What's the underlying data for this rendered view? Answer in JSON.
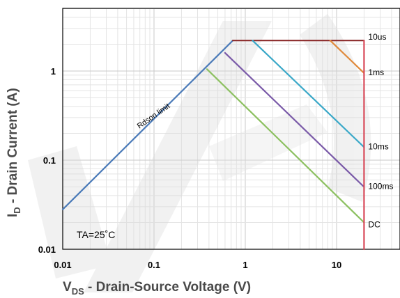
{
  "chart_data": {
    "type": "line",
    "title": "",
    "xlabel": "V",
    "xlabel_sub": "DS",
    "xlabel_rest": " - Drain-Source Voltage (V)",
    "ylabel": "I",
    "ylabel_sub": "D",
    "ylabel_rest": " - Drain Current (A)",
    "x_scale": "log",
    "y_scale": "log",
    "xlim": [
      0.01,
      50
    ],
    "ylim": [
      0.01,
      5
    ],
    "grid": true,
    "x_ticks": [
      {
        "value": 0.01,
        "label": "0.01"
      },
      {
        "value": 0.1,
        "label": "0.1"
      },
      {
        "value": 1,
        "label": "1"
      },
      {
        "value": 10,
        "label": "10"
      }
    ],
    "y_ticks": [
      {
        "value": 0.01,
        "label": "0.01"
      },
      {
        "value": 0.1,
        "label": "0.1"
      },
      {
        "value": 1,
        "label": "1"
      }
    ],
    "series": [
      {
        "name": "Rdson limit",
        "color": "#4a7ab8",
        "points": [
          [
            0.01,
            0.028
          ],
          [
            0.73,
            2.2
          ]
        ]
      },
      {
        "name": "10us",
        "color": "#8b2a2a",
        "points": [
          [
            0.73,
            2.2
          ],
          [
            20,
            2.2
          ]
        ]
      },
      {
        "name": "1ms",
        "color": "#e08a3c",
        "points": [
          [
            8.5,
            2.2
          ],
          [
            20,
            0.95
          ]
        ]
      },
      {
        "name": "10ms",
        "color": "#3aa8c8",
        "points": [
          [
            1.2,
            2.2
          ],
          [
            20,
            0.14
          ]
        ]
      },
      {
        "name": "100ms",
        "color": "#7a5aa8",
        "points": [
          [
            0.6,
            1.6
          ],
          [
            20,
            0.05
          ]
        ]
      },
      {
        "name": "DC",
        "color": "#8cc060",
        "points": [
          [
            0.38,
            1.05
          ],
          [
            20,
            0.02
          ]
        ]
      },
      {
        "name": "",
        "color": "#d84a5a",
        "points": [
          [
            20,
            2.2
          ],
          [
            20,
            0.01
          ]
        ]
      }
    ],
    "series_labels": [
      {
        "text": "10us",
        "x": 20,
        "y": 2.2
      },
      {
        "text": "1ms",
        "x": 20,
        "y": 0.95
      },
      {
        "text": "10ms",
        "x": 20,
        "y": 0.14
      },
      {
        "text": "100ms",
        "x": 20,
        "y": 0.05
      },
      {
        "text": "DC",
        "x": 20,
        "y": 0.02
      }
    ],
    "annotations": [
      {
        "text": "Rdson limit"
      },
      {
        "text": "TA=25˚C"
      }
    ]
  }
}
